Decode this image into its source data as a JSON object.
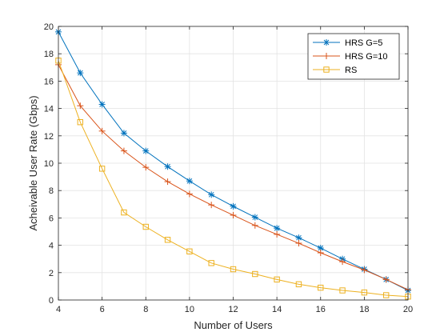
{
  "chart_data": {
    "type": "line",
    "title": "",
    "xlabel": "Number of Users",
    "ylabel": "Acheivable User Rate (Gbps)",
    "xlim": [
      4,
      20
    ],
    "ylim": [
      0,
      20
    ],
    "xticks": [
      "4",
      "6",
      "8",
      "10",
      "12",
      "14",
      "16",
      "18",
      "20"
    ],
    "yticks": [
      "0",
      "2",
      "4",
      "6",
      "8",
      "10",
      "12",
      "14",
      "16",
      "18",
      "20"
    ],
    "grid": true,
    "legend_position": "top-right",
    "x": [
      4,
      5,
      6,
      7,
      8,
      9,
      10,
      11,
      12,
      13,
      14,
      15,
      16,
      17,
      18,
      19,
      20
    ],
    "series": [
      {
        "name": "HRS G=5",
        "color": "#0072BD",
        "marker": "asterisk",
        "values": [
          19.6,
          16.6,
          14.3,
          12.2,
          10.9,
          9.75,
          8.7,
          7.7,
          6.85,
          6.05,
          5.25,
          4.55,
          3.8,
          3.0,
          2.25,
          1.5,
          0.7
        ]
      },
      {
        "name": "HRS G=10",
        "color": "#D95319",
        "marker": "plus",
        "values": [
          17.2,
          14.2,
          12.35,
          10.9,
          9.7,
          8.65,
          7.75,
          6.95,
          6.2,
          5.45,
          4.8,
          4.15,
          3.45,
          2.8,
          2.2,
          1.5,
          0.75
        ]
      },
      {
        "name": "RS",
        "color": "#EDB120",
        "marker": "square",
        "values": [
          17.5,
          13.0,
          9.6,
          6.4,
          5.35,
          4.4,
          3.55,
          2.7,
          2.25,
          1.9,
          1.5,
          1.15,
          0.9,
          0.7,
          0.55,
          0.35,
          0.25
        ]
      }
    ]
  }
}
